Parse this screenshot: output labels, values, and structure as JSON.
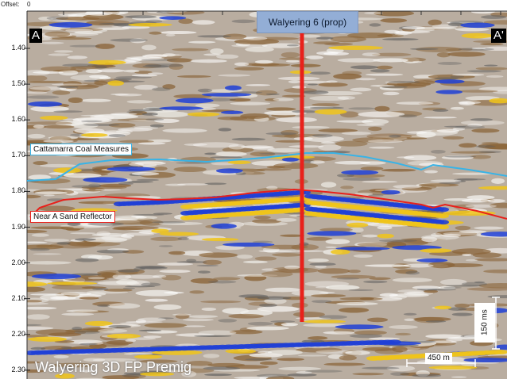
{
  "offset": {
    "label": "Offset:",
    "value": "0"
  },
  "y_axis": {
    "ticks": [
      "1.40",
      "1.50",
      "1.60",
      "1.70",
      "1.80",
      "1.90",
      "2.00",
      "2.10",
      "2.20",
      "2.30"
    ]
  },
  "section": {
    "start_label": "A",
    "end_label": "A'"
  },
  "well": {
    "label": "Walyering 6 (prop)",
    "color": "#e8211b"
  },
  "horizons": [
    {
      "name": "Cattamarra Coal Measures",
      "color": "#39b3e6"
    },
    {
      "name": "Near A Sand Reflector",
      "color": "#e8211b"
    }
  ],
  "survey_label": "Walyering 3D FP Premig",
  "scale_bars": {
    "vertical": "150 ms",
    "horizontal": "450 m"
  },
  "colors": {
    "trough": "#1f3fd6",
    "peak": "#f0c419",
    "background_brown": "#8a6438"
  }
}
